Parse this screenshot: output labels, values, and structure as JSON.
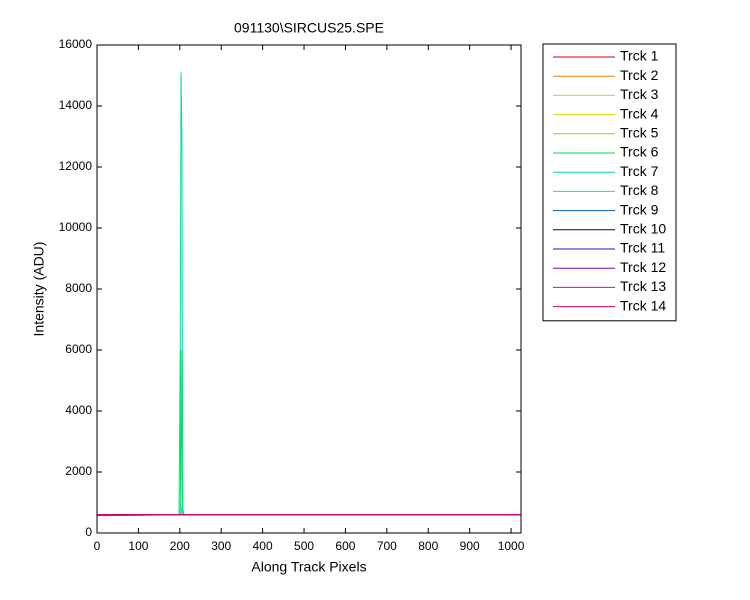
{
  "chart_data": {
    "type": "line",
    "title": "091130\\SIRCUS25.SPE",
    "xlabel": "Along Track Pixels",
    "ylabel": "Intensity (ADU)",
    "x": [
      0,
      100,
      150,
      198,
      201,
      203,
      205,
      207,
      210,
      215,
      300,
      500,
      700,
      900,
      1024
    ],
    "series": [
      {
        "name": "Trck 1",
        "color": "#d40000",
        "values": [
          570,
          582,
          592,
          598,
          600,
          600,
          600,
          600,
          600,
          600,
          600,
          600,
          600,
          600,
          600
        ]
      },
      {
        "name": "Trck 2",
        "color": "#ff7f00",
        "values": [
          585,
          590,
          595,
          598,
          600,
          600,
          600,
          600,
          600,
          600,
          600,
          600,
          600,
          600,
          600
        ]
      },
      {
        "name": "Trck 3",
        "color": "#f0c800",
        "values": [
          588,
          592,
          596,
          598,
          600,
          600,
          600,
          600,
          600,
          600,
          600,
          600,
          600,
          600,
          600
        ]
      },
      {
        "name": "Trck 4",
        "color": "#d2e100",
        "values": [
          590,
          593,
          596,
          599,
          600,
          600,
          600,
          600,
          600,
          600,
          600,
          600,
          600,
          600,
          600
        ]
      },
      {
        "name": "Trck 5",
        "color": "#80e000",
        "values": [
          592,
          594,
          597,
          599,
          600,
          600,
          600,
          600,
          600,
          600,
          600,
          600,
          600,
          600,
          600
        ]
      },
      {
        "name": "Trck 6",
        "color": "#00e040",
        "values": [
          593,
          595,
          597,
          600,
          600,
          6000,
          1500,
          620,
          600,
          600,
          600,
          600,
          600,
          600,
          600
        ]
      },
      {
        "name": "Trck 7",
        "color": "#00e08c",
        "values": [
          594,
          596,
          598,
          600,
          5900,
          15100,
          13000,
          700,
          600,
          600,
          600,
          600,
          600,
          600,
          600
        ]
      },
      {
        "name": "Trck 8",
        "color": "#00e0e0",
        "values": [
          595,
          596,
          598,
          600,
          600,
          600,
          900,
          800,
          620,
          600,
          600,
          600,
          600,
          600,
          600
        ]
      },
      {
        "name": "Trck 9",
        "color": "#0060c0",
        "values": [
          596,
          597,
          598,
          600,
          600,
          600,
          600,
          600,
          600,
          600,
          600,
          600,
          600,
          600,
          600
        ]
      },
      {
        "name": "Trck 10",
        "color": "#000080",
        "values": [
          596,
          597,
          598,
          600,
          600,
          600,
          600,
          600,
          600,
          600,
          600,
          600,
          600,
          600,
          600
        ]
      },
      {
        "name": "Trck 11",
        "color": "#4000c0",
        "values": [
          597,
          598,
          599,
          600,
          600,
          600,
          600,
          600,
          600,
          600,
          600,
          600,
          600,
          600,
          600
        ]
      },
      {
        "name": "Trck 12",
        "color": "#8000c0",
        "values": [
          597,
          598,
          599,
          600,
          600,
          600,
          600,
          600,
          600,
          600,
          600,
          600,
          600,
          600,
          600
        ]
      },
      {
        "name": "Trck 13",
        "color": "#d000d0",
        "values": [
          598,
          598,
          599,
          600,
          600,
          600,
          600,
          600,
          600,
          600,
          600,
          600,
          600,
          600,
          600
        ]
      },
      {
        "name": "Trck 14",
        "color": "#e00060",
        "values": [
          598,
          599,
          599,
          600,
          600,
          600,
          600,
          600,
          600,
          600,
          600,
          600,
          600,
          600,
          600
        ]
      }
    ],
    "xlim": [
      0,
      1024
    ],
    "xticks": [
      0,
      100,
      200,
      300,
      400,
      500,
      600,
      700,
      800,
      900,
      1000
    ],
    "ylim": [
      0,
      16000
    ],
    "yticks": [
      0,
      2000,
      4000,
      6000,
      8000,
      10000,
      12000,
      14000,
      16000
    ],
    "grid": false,
    "legend": "outside-right"
  }
}
